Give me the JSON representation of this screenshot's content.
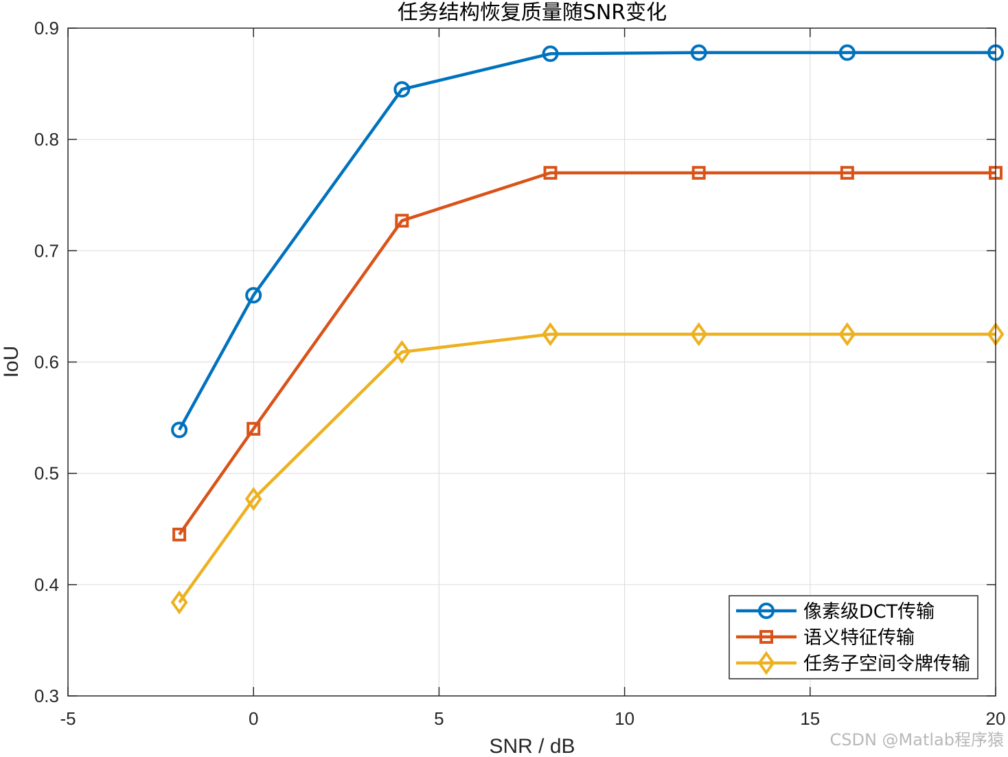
{
  "chart_data": {
    "type": "line",
    "title": "任务结构恢复质量随SNR变化",
    "xlabel": "SNR / dB",
    "ylabel": "IoU",
    "xlim": [
      -5,
      20
    ],
    "ylim": [
      0.3,
      0.9
    ],
    "xticks": [
      -5,
      0,
      5,
      10,
      15,
      20
    ],
    "xtick_labels": [
      "-5",
      "0",
      "5",
      "10",
      "15",
      "20"
    ],
    "yticks": [
      0.3,
      0.4,
      0.5,
      0.6,
      0.7,
      0.8,
      0.9
    ],
    "ytick_labels": [
      "0.3",
      "0.4",
      "0.5",
      "0.6",
      "0.7",
      "0.8",
      "0.9"
    ],
    "grid": true,
    "legend_position": "bottom-right",
    "x": [
      -2,
      0,
      4,
      8,
      12,
      16,
      20
    ],
    "series": [
      {
        "name": "像素级DCT传输",
        "color": "#0072BD",
        "marker": "circle",
        "values": [
          0.539,
          0.66,
          0.845,
          0.877,
          0.878,
          0.878,
          0.878
        ]
      },
      {
        "name": "语义特征传输",
        "color": "#D95319",
        "marker": "square",
        "values": [
          0.445,
          0.54,
          0.727,
          0.77,
          0.77,
          0.77,
          0.77
        ]
      },
      {
        "name": "任务子空间令牌传输",
        "color": "#EDB120",
        "marker": "diamond",
        "values": [
          0.384,
          0.477,
          0.609,
          0.625,
          0.625,
          0.625,
          0.625
        ]
      }
    ]
  },
  "watermark": "CSDN @Matlab程序猿"
}
